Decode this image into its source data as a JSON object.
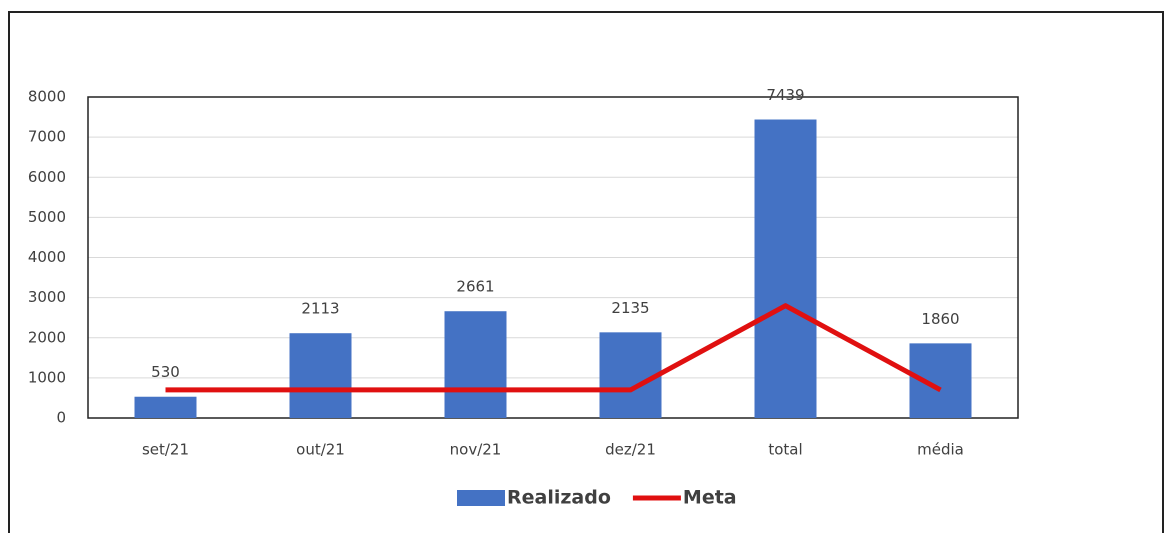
{
  "chart_data": {
    "type": "bar",
    "categories": [
      "set/21",
      "out/21",
      "nov/21",
      "dez/21",
      "total",
      "média"
    ],
    "series": [
      {
        "name": "Realizado",
        "type": "bar",
        "color": "#4472c4",
        "values": [
          530,
          2113,
          2661,
          2135,
          7439,
          1860
        ]
      },
      {
        "name": "Meta",
        "type": "line",
        "color": "#e01010",
        "values": [
          700,
          700,
          700,
          700,
          2800,
          700
        ]
      }
    ],
    "ylim": [
      0,
      8000
    ],
    "yticks": [
      0,
      1000,
      2000,
      3000,
      4000,
      5000,
      6000,
      7000,
      8000
    ],
    "grid": true,
    "legend": "bottom"
  }
}
